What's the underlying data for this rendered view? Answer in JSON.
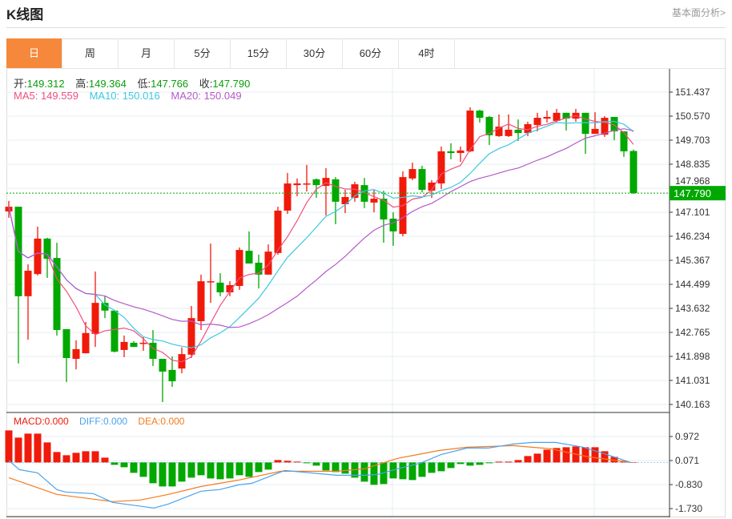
{
  "header": {
    "title": "K线图",
    "more_link": "基本面分析>"
  },
  "tabs": [
    {
      "label": "日",
      "active": true
    },
    {
      "label": "周"
    },
    {
      "label": "月"
    },
    {
      "label": "5分"
    },
    {
      "label": "15分"
    },
    {
      "label": "30分"
    },
    {
      "label": "60分"
    },
    {
      "label": "4时"
    }
  ],
  "ohlc_legend": {
    "open_label": "开:",
    "open": "149.312",
    "high_label": "高:",
    "high": "149.364",
    "low_label": "低:",
    "low": "147.766",
    "close_label": "收:",
    "close": "147.790"
  },
  "ma_legend": {
    "ma5": "MA5: 149.559",
    "ma10": "MA10: 150.016",
    "ma20": "MA20: 150.049"
  },
  "macd_legend": {
    "macd": "MACD:0.000",
    "diff": "DIFF:0.000",
    "dea": "DEA:0.000"
  },
  "colors": {
    "up": "#f01a0a",
    "down": "#00a800",
    "ma5": "#f0507c",
    "ma10": "#3cc8e0",
    "ma20": "#b45ac8",
    "diff": "#4aa3ee",
    "dea": "#f57a1e",
    "active_tab": "#f5883b"
  },
  "chart_data": [
    {
      "type": "candlestick",
      "title": "K线图",
      "ylim": [
        140.163,
        151.437
      ],
      "y_ticks": [
        "151.437",
        "150.570",
        "149.703",
        "148.835",
        "147.968",
        "147.101",
        "146.234",
        "145.367",
        "144.499",
        "143.632",
        "142.765",
        "141.898",
        "141.031",
        "140.163"
      ],
      "last_price": "147.790",
      "ohlc": [
        [
          147.13,
          147.51,
          146.9,
          147.3
        ],
        [
          147.3,
          147.3,
          141.64,
          144.07
        ],
        [
          144.07,
          145.22,
          142.5,
          144.99
        ],
        [
          144.87,
          146.58,
          144.82,
          146.15
        ],
        [
          146.15,
          146.18,
          144.73,
          145.42
        ],
        [
          145.45,
          146.0,
          142.65,
          142.85
        ],
        [
          142.88,
          142.88,
          140.97,
          141.84
        ],
        [
          141.81,
          142.48,
          141.43,
          142.16
        ],
        [
          142.01,
          143.14,
          142.01,
          142.74
        ],
        [
          142.71,
          144.96,
          142.24,
          143.83
        ],
        [
          143.83,
          144.09,
          143.28,
          143.55
        ],
        [
          143.55,
          143.55,
          142.04,
          142.07
        ],
        [
          142.13,
          142.65,
          141.87,
          142.42
        ],
        [
          142.39,
          142.45,
          142.24,
          142.24
        ],
        [
          142.36,
          142.59,
          142.1,
          142.39
        ],
        [
          142.39,
          142.85,
          141.55,
          141.81
        ],
        [
          141.81,
          141.81,
          140.25,
          141.35
        ],
        [
          141.41,
          141.9,
          140.8,
          141.0
        ],
        [
          141.46,
          142.22,
          141.29,
          141.98
        ],
        [
          141.96,
          143.72,
          141.84,
          143.28
        ],
        [
          143.17,
          144.85,
          142.85,
          144.61
        ],
        [
          144.59,
          145.97,
          143.83,
          144.61
        ],
        [
          144.56,
          144.9,
          144.07,
          144.21
        ],
        [
          144.21,
          144.61,
          144.07,
          144.47
        ],
        [
          144.44,
          145.83,
          144.3,
          145.74
        ],
        [
          145.71,
          146.41,
          145.25,
          145.25
        ],
        [
          145.28,
          145.57,
          144.35,
          144.85
        ],
        [
          144.85,
          145.94,
          144.85,
          145.68
        ],
        [
          145.63,
          147.3,
          145.57,
          147.16
        ],
        [
          147.16,
          148.52,
          147.04,
          148.14
        ],
        [
          148.08,
          148.32,
          147.68,
          148.14
        ],
        [
          148.11,
          148.81,
          147.85,
          148.14
        ],
        [
          148.29,
          148.32,
          147.62,
          148.08
        ],
        [
          148.05,
          148.69,
          146.99,
          148.34
        ],
        [
          148.29,
          148.37,
          146.67,
          147.48
        ],
        [
          147.39,
          147.91,
          147.07,
          147.65
        ],
        [
          147.62,
          148.2,
          147.48,
          148.11
        ],
        [
          148.08,
          148.34,
          147.25,
          147.48
        ],
        [
          147.45,
          147.91,
          147.1,
          147.59
        ],
        [
          147.59,
          147.88,
          146.0,
          146.84
        ],
        [
          146.87,
          147.1,
          145.89,
          146.41
        ],
        [
          146.32,
          148.58,
          146.23,
          148.37
        ],
        [
          148.32,
          148.89,
          148.26,
          148.66
        ],
        [
          148.66,
          148.78,
          147.82,
          147.91
        ],
        [
          147.88,
          148.26,
          147.62,
          148.17
        ],
        [
          148.14,
          149.47,
          147.94,
          149.3
        ],
        [
          149.3,
          149.59,
          149.01,
          149.24
        ],
        [
          149.24,
          149.47,
          148.92,
          149.33
        ],
        [
          149.3,
          150.89,
          149.27,
          150.77
        ],
        [
          150.77,
          150.8,
          150.34,
          150.51
        ],
        [
          150.54,
          150.57,
          149.53,
          149.88
        ],
        [
          149.85,
          150.63,
          149.82,
          150.19
        ],
        [
          149.85,
          150.63,
          149.82,
          150.08
        ],
        [
          150.08,
          150.45,
          149.67,
          149.96
        ],
        [
          149.96,
          150.37,
          149.85,
          150.28
        ],
        [
          150.25,
          150.69,
          150.02,
          150.51
        ],
        [
          150.48,
          150.77,
          150.34,
          150.54
        ],
        [
          150.4,
          150.83,
          150.34,
          150.69
        ],
        [
          150.69,
          150.69,
          150.05,
          150.48
        ],
        [
          150.48,
          150.83,
          150.37,
          150.69
        ],
        [
          150.69,
          150.69,
          149.21,
          149.93
        ],
        [
          149.93,
          150.71,
          149.93,
          150.11
        ],
        [
          149.9,
          150.57,
          149.82,
          150.51
        ],
        [
          150.54,
          150.54,
          149.7,
          150.02
        ],
        [
          150.02,
          150.02,
          149.1,
          149.3
        ],
        [
          149.312,
          149.364,
          147.766,
          147.79
        ]
      ],
      "ma_periods": [
        5,
        10,
        20
      ]
    },
    {
      "type": "bar+line",
      "title": "MACD",
      "ylim": [
        -1.85,
        1.3
      ],
      "y_ticks": [
        "0.972",
        "0.071",
        "-0.830",
        "-1.730"
      ],
      "y_tick_values": [
        0.972,
        0.071,
        -0.83,
        -1.73
      ],
      "macd_hist": [
        1.2,
        0.93,
        1.08,
        1.08,
        0.75,
        0.39,
        0.27,
        0.36,
        0.42,
        0.42,
        0.18,
        -0.09,
        -0.18,
        -0.39,
        -0.54,
        -0.78,
        -0.9,
        -0.9,
        -0.72,
        -0.57,
        -0.48,
        -0.6,
        -0.63,
        -0.6,
        -0.48,
        -0.54,
        -0.36,
        -0.27,
        0.09,
        0.06,
        0.03,
        -0.03,
        -0.12,
        -0.3,
        -0.36,
        -0.42,
        -0.57,
        -0.72,
        -0.84,
        -0.81,
        -0.6,
        -0.63,
        -0.66,
        -0.54,
        -0.39,
        -0.33,
        -0.21,
        -0.06,
        -0.12,
        -0.09,
        -0.03,
        0.03,
        0.03,
        0.09,
        0.24,
        0.33,
        0.48,
        0.54,
        0.57,
        0.6,
        0.57,
        0.57,
        0.42,
        0.21,
        0.06,
        0.0
      ],
      "diff": [
        [
          1,
          0.07
        ],
        [
          2.1,
          -0.27
        ],
        [
          4,
          -0.39
        ],
        [
          6,
          -1.02
        ],
        [
          6.9,
          -1.11
        ],
        [
          9.8,
          -1.17
        ],
        [
          11.8,
          -1.5
        ],
        [
          16.1,
          -1.71
        ],
        [
          17.6,
          -1.56
        ],
        [
          21,
          -1.08
        ],
        [
          22.9,
          -1.02
        ],
        [
          24.9,
          -0.84
        ],
        [
          26.3,
          -0.78
        ],
        [
          29.7,
          -0.3
        ],
        [
          35.1,
          -0.48
        ],
        [
          38,
          -0.48
        ],
        [
          39.4,
          -0.45
        ],
        [
          41.4,
          -0.24
        ],
        [
          43.8,
          -0.03
        ],
        [
          46,
          0.3
        ],
        [
          48.7,
          0.54
        ],
        [
          50.9,
          0.54
        ],
        [
          53.5,
          0.69
        ],
        [
          55.5,
          0.75
        ],
        [
          57.9,
          0.75
        ],
        [
          60.8,
          0.57
        ],
        [
          63.2,
          0.3
        ],
        [
          65.7,
          0.0
        ]
      ],
      "dea": [
        [
          1,
          -0.57
        ],
        [
          6,
          -1.2
        ],
        [
          11.8,
          -1.47
        ],
        [
          14.7,
          -1.41
        ],
        [
          17.6,
          -1.2
        ],
        [
          21,
          -0.9
        ],
        [
          24.9,
          -0.66
        ],
        [
          29.3,
          -0.33
        ],
        [
          35.1,
          -0.33
        ],
        [
          38,
          -0.24
        ],
        [
          41.4,
          0.15
        ],
        [
          45.8,
          0.45
        ],
        [
          48.7,
          0.57
        ],
        [
          53.5,
          0.63
        ],
        [
          57.4,
          0.51
        ],
        [
          61.3,
          0.21
        ],
        [
          65.7,
          0.0
        ]
      ]
    }
  ]
}
